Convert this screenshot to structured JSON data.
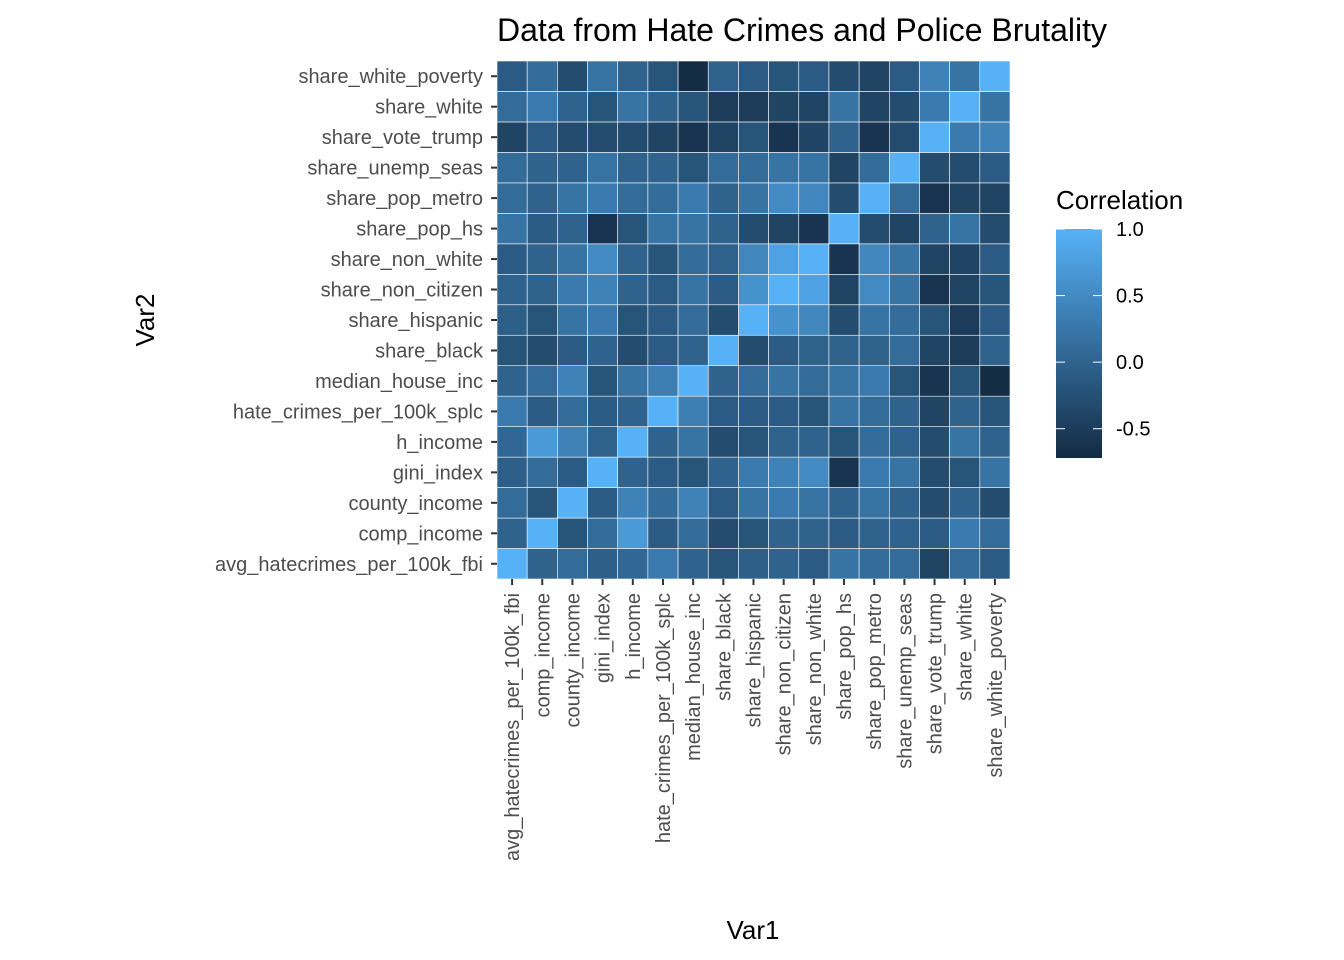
{
  "chart_data": {
    "type": "heatmap",
    "title": "Data from Hate Crimes and Police Brutality",
    "xlabel": "Var1",
    "ylabel": "Var2",
    "variables": [
      "avg_hatecrimes_per_100k_fbi",
      "comp_income",
      "county_income",
      "gini_index",
      "h_income",
      "hate_crimes_per_100k_splc",
      "median_house_inc",
      "share_black",
      "share_hispanic",
      "share_non_citizen",
      "share_non_white",
      "share_pop_hs",
      "share_pop_metro",
      "share_unemp_seas",
      "share_vote_trump",
      "share_white",
      "share_white_poverty"
    ],
    "matrix": [
      [
        1.0,
        0.0,
        0.1,
        -0.05,
        0.05,
        0.3,
        0.0,
        -0.2,
        -0.05,
        0.0,
        -0.1,
        0.2,
        0.1,
        0.1,
        -0.4,
        0.1,
        -0.1
      ],
      [
        0.0,
        1.0,
        -0.2,
        0.1,
        0.7,
        -0.1,
        0.1,
        -0.3,
        -0.2,
        0.0,
        0.0,
        -0.1,
        0.0,
        0.0,
        -0.1,
        0.3,
        0.1
      ],
      [
        0.1,
        -0.2,
        1.0,
        -0.1,
        0.4,
        0.1,
        0.4,
        -0.1,
        0.2,
        0.3,
        0.2,
        0.0,
        0.2,
        0.0,
        -0.3,
        0.0,
        -0.3
      ],
      [
        -0.05,
        0.1,
        -0.1,
        1.0,
        0.0,
        -0.1,
        -0.2,
        0.0,
        0.3,
        0.4,
        0.5,
        -0.6,
        0.3,
        0.2,
        -0.3,
        -0.2,
        0.2
      ],
      [
        0.05,
        0.7,
        0.4,
        0.0,
        1.0,
        0.0,
        0.2,
        -0.3,
        -0.2,
        0.0,
        0.0,
        -0.2,
        0.1,
        0.0,
        -0.3,
        0.2,
        0.0
      ],
      [
        0.3,
        -0.1,
        0.1,
        -0.1,
        0.0,
        1.0,
        0.35,
        -0.1,
        -0.1,
        -0.1,
        -0.2,
        0.2,
        0.1,
        0.0,
        -0.4,
        0.0,
        -0.2
      ],
      [
        0.0,
        0.1,
        0.4,
        -0.2,
        0.2,
        0.35,
        1.0,
        0.0,
        0.1,
        0.2,
        0.1,
        0.2,
        0.3,
        -0.2,
        -0.6,
        -0.2,
        -0.7
      ],
      [
        -0.2,
        -0.3,
        -0.1,
        0.0,
        -0.3,
        -0.1,
        0.0,
        1.0,
        -0.3,
        -0.1,
        0.0,
        0.0,
        0.0,
        0.1,
        -0.4,
        -0.5,
        0.0
      ],
      [
        -0.05,
        -0.2,
        0.2,
        0.3,
        -0.2,
        -0.1,
        0.1,
        -0.3,
        1.0,
        0.6,
        0.45,
        -0.3,
        0.2,
        0.1,
        -0.2,
        -0.5,
        -0.1
      ],
      [
        0.0,
        0.0,
        0.3,
        0.4,
        0.0,
        -0.1,
        0.2,
        -0.1,
        0.6,
        1.0,
        0.8,
        -0.4,
        0.5,
        0.2,
        -0.6,
        -0.4,
        -0.2
      ],
      [
        -0.1,
        0.0,
        0.2,
        0.5,
        0.0,
        -0.2,
        0.1,
        0.0,
        0.45,
        0.8,
        1.0,
        -0.6,
        0.45,
        0.2,
        -0.4,
        -0.4,
        -0.1
      ],
      [
        0.2,
        -0.1,
        0.0,
        -0.6,
        -0.2,
        0.2,
        0.2,
        0.0,
        -0.3,
        -0.4,
        -0.6,
        1.0,
        -0.3,
        -0.4,
        0.0,
        0.2,
        -0.3
      ],
      [
        0.1,
        0.0,
        0.2,
        0.3,
        0.1,
        0.1,
        0.3,
        0.0,
        0.2,
        0.5,
        0.45,
        -0.3,
        1.0,
        0.1,
        -0.6,
        -0.4,
        -0.4
      ],
      [
        0.1,
        0.0,
        0.0,
        0.2,
        0.0,
        0.0,
        -0.2,
        0.1,
        0.1,
        0.2,
        0.2,
        -0.4,
        0.1,
        1.0,
        -0.3,
        -0.3,
        -0.1
      ],
      [
        -0.4,
        -0.1,
        -0.3,
        -0.3,
        -0.3,
        -0.4,
        -0.6,
        -0.4,
        -0.2,
        -0.6,
        -0.4,
        0.0,
        -0.6,
        -0.3,
        1.0,
        0.3,
        0.4
      ],
      [
        0.1,
        0.3,
        0.0,
        -0.2,
        0.2,
        0.0,
        -0.2,
        -0.5,
        -0.5,
        -0.4,
        -0.4,
        0.2,
        -0.4,
        -0.3,
        0.3,
        1.0,
        0.2
      ],
      [
        -0.1,
        0.1,
        -0.3,
        0.2,
        0.0,
        -0.2,
        -0.7,
        0.0,
        -0.1,
        -0.2,
        -0.1,
        -0.3,
        -0.4,
        -0.1,
        0.4,
        0.2,
        1.0
      ]
    ],
    "color_scale": {
      "low": "#132B43",
      "high": "#56B1F7",
      "limits": [
        -0.72,
        1.0
      ]
    },
    "legend": {
      "title": "Correlation",
      "breaks": [
        1.0,
        0.5,
        0.0,
        -0.5
      ],
      "labels": [
        "1.0",
        "0.5",
        "0.0",
        "-0.5"
      ],
      "placement": "right"
    },
    "panel_background": "#EBEBEB",
    "grid": true
  }
}
